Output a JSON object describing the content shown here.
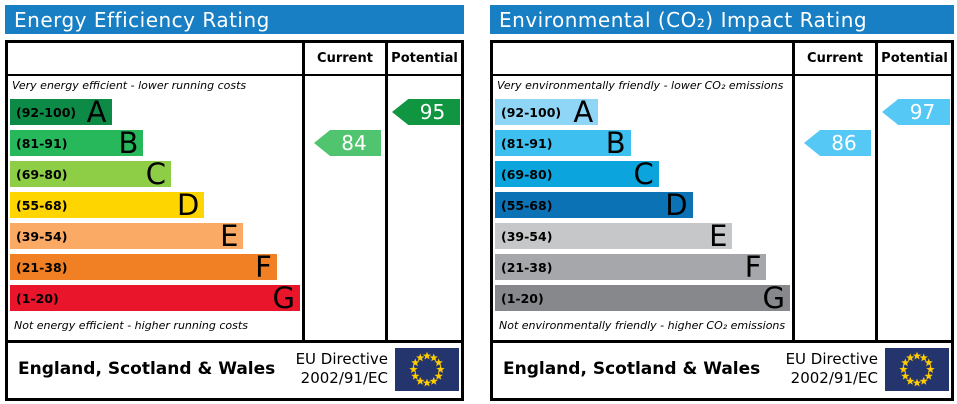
{
  "header_bg": "#187fc4",
  "flag_colors": {
    "bg": "#24356e",
    "star": "#ffcc00"
  },
  "panels": [
    {
      "title": "Energy Efficiency Rating",
      "columns": {
        "current": "Current",
        "potential": "Potential"
      },
      "top_caption": "Very energy efficient - lower running costs",
      "bottom_caption": "Not energy efficient - higher running costs",
      "bands": [
        {
          "range": "(92-100)",
          "letter": "A",
          "color": "#0e8a47",
          "width_pct": 35
        },
        {
          "range": "(81-91)",
          "letter": "B",
          "color": "#27b85c",
          "width_pct": 46
        },
        {
          "range": "(69-80)",
          "letter": "C",
          "color": "#8dce46",
          "width_pct": 55.5
        },
        {
          "range": "(55-68)",
          "letter": "D",
          "color": "#ffd500",
          "width_pct": 67
        },
        {
          "range": "(39-54)",
          "letter": "E",
          "color": "#fbaa65",
          "width_pct": 80.5
        },
        {
          "range": "(21-38)",
          "letter": "F",
          "color": "#f08023",
          "width_pct": 92
        },
        {
          "range": "(1-20)",
          "letter": "G",
          "color": "#e9152b",
          "width_pct": 100
        }
      ],
      "current": {
        "value": "84",
        "band_index": 1,
        "color": "#50c46e"
      },
      "potential": {
        "value": "95",
        "band_index": 0,
        "color": "#109540"
      },
      "footer": {
        "region": "England, Scotland & Wales",
        "directive_line1": "EU Directive",
        "directive_line2": "2002/91/EC"
      }
    },
    {
      "title": "Environmental (CO₂) Impact Rating",
      "columns": {
        "current": "Current",
        "potential": "Potential"
      },
      "top_caption": "Very environmentally friendly - lower CO₂ emissions",
      "bottom_caption": "Not environmentally friendly - higher CO₂ emissions",
      "bands": [
        {
          "range": "(92-100)",
          "letter": "A",
          "color": "#8fd6f6",
          "width_pct": 35
        },
        {
          "range": "(81-91)",
          "letter": "B",
          "color": "#3dc0f0",
          "width_pct": 46
        },
        {
          "range": "(69-80)",
          "letter": "C",
          "color": "#0ca4dd",
          "width_pct": 55.5
        },
        {
          "range": "(55-68)",
          "letter": "D",
          "color": "#0b72b5",
          "width_pct": 67
        },
        {
          "range": "(39-54)",
          "letter": "E",
          "color": "#c6c7c8",
          "width_pct": 80.5
        },
        {
          "range": "(21-38)",
          "letter": "F",
          "color": "#a5a7aa",
          "width_pct": 92
        },
        {
          "range": "(1-20)",
          "letter": "G",
          "color": "#87888c",
          "width_pct": 100
        }
      ],
      "current": {
        "value": "86",
        "band_index": 1,
        "color": "#55c8f5"
      },
      "potential": {
        "value": "97",
        "band_index": 0,
        "color": "#55c8f5"
      },
      "footer": {
        "region": "England, Scotland & Wales",
        "directive_line1": "EU Directive",
        "directive_line2": "2002/91/EC"
      }
    }
  ],
  "chart_data": [
    {
      "type": "bar",
      "title": "Energy Efficiency Rating",
      "categories": [
        "A (92-100)",
        "B (81-91)",
        "C (69-80)",
        "D (55-68)",
        "E (39-54)",
        "F (21-38)",
        "G (1-20)"
      ],
      "values": [
        35,
        46,
        55.5,
        67,
        80.5,
        92,
        100
      ],
      "xlabel": "",
      "ylabel": "",
      "annotations": {
        "current": 84,
        "potential": 95
      },
      "notes": [
        "Very energy efficient - lower running costs",
        "Not energy efficient - higher running costs",
        "England, Scotland & Wales",
        "EU Directive 2002/91/EC"
      ]
    },
    {
      "type": "bar",
      "title": "Environmental (CO₂) Impact Rating",
      "categories": [
        "A (92-100)",
        "B (81-91)",
        "C (69-80)",
        "D (55-68)",
        "E (39-54)",
        "F (21-38)",
        "G (1-20)"
      ],
      "values": [
        35,
        46,
        55.5,
        67,
        80.5,
        92,
        100
      ],
      "xlabel": "",
      "ylabel": "",
      "annotations": {
        "current": 86,
        "potential": 97
      },
      "notes": [
        "Very environmentally friendly - lower CO₂ emissions",
        "Not environmentally friendly - higher CO₂ emissions",
        "England, Scotland & Wales",
        "EU Directive 2002/91/EC"
      ]
    }
  ]
}
